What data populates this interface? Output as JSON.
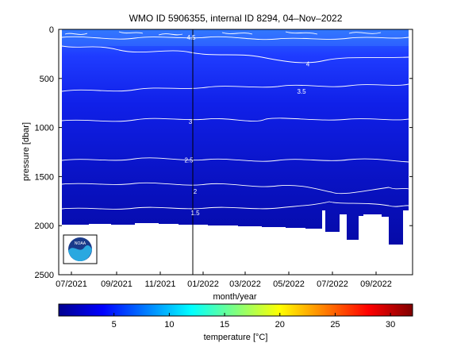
{
  "chart_data": {
    "type": "heatmap",
    "title": "WMO ID 5906355, internal ID 8294, 04–Nov–2022",
    "xlabel": "month/year",
    "ylabel": "pressure [dbar]",
    "x_ticks": [
      "07/2021",
      "09/2021",
      "11/2021",
      "01/2022",
      "03/2022",
      "05/2022",
      "07/2022",
      "09/2022"
    ],
    "y_ticks": [
      "0",
      "500",
      "1000",
      "1500",
      "2000",
      "2500"
    ],
    "ylim": [
      2500,
      0
    ],
    "y_reversed": true,
    "grid": false,
    "colorbar": {
      "label": "temperature [°C]",
      "range": [
        0,
        32
      ],
      "ticks": [
        "5",
        "10",
        "15",
        "20",
        "25",
        "30"
      ],
      "colormap": "jet"
    },
    "contours": [
      {
        "label": "1.5",
        "pressure": 1870
      },
      {
        "label": "2",
        "pressure": 1650
      },
      {
        "label": "2.5",
        "pressure": 1330
      },
      {
        "label": "3",
        "pressure": 940
      },
      {
        "label": "3.5",
        "pressure": 630
      },
      {
        "label": "4",
        "pressure": 350
      },
      {
        "label": "4.5",
        "pressure": 80
      }
    ],
    "profile_bottom_dbar": [
      {
        "date": "06/2021",
        "pressure": 2000
      },
      {
        "date": "09/2021",
        "pressure": 1990
      },
      {
        "date": "12/2021",
        "pressure": 2005
      },
      {
        "date": "03/2022",
        "pressure": 2010
      },
      {
        "date": "05/2022",
        "pressure": 2020
      },
      {
        "date": "06/2022",
        "pressure": 1850
      },
      {
        "date": "07/2022",
        "pressure": 1910
      },
      {
        "date": "08/2022",
        "pressure": 2080
      },
      {
        "date": "09/2022",
        "pressure": 1930
      },
      {
        "date": "10/2022",
        "pressure": 2200
      },
      {
        "date": "11/2022",
        "pressure": 1850
      }
    ],
    "marker_line_date": "12/2021",
    "logo": "NOAA"
  }
}
